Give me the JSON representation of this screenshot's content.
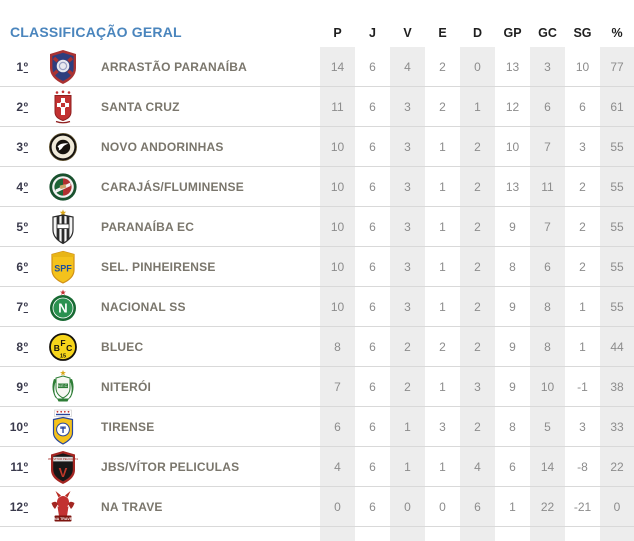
{
  "chart_data": {
    "type": "table",
    "title": "CLASSIFICAÇÃO GERAL",
    "columns": [
      "P",
      "J",
      "V",
      "E",
      "D",
      "GP",
      "GC",
      "SG",
      "%"
    ],
    "rows": [
      {
        "pos": "1º",
        "team": "ARRASTÃO PARANAÍBA",
        "crest": "arrastao-paranaiba-crest",
        "values": [
          14,
          6,
          4,
          2,
          0,
          13,
          3,
          10,
          77
        ]
      },
      {
        "pos": "2º",
        "team": "SANTA CRUZ",
        "crest": "santa-cruz-crest",
        "values": [
          11,
          6,
          3,
          2,
          1,
          12,
          6,
          6,
          61
        ]
      },
      {
        "pos": "3º",
        "team": "NOVO ANDORINHAS",
        "crest": "novo-andorinhas-crest",
        "values": [
          10,
          6,
          3,
          1,
          2,
          10,
          7,
          3,
          55
        ]
      },
      {
        "pos": "4º",
        "team": "CARAJÁS/FLUMINENSE",
        "crest": "carajas-fluminense-crest",
        "values": [
          10,
          6,
          3,
          1,
          2,
          13,
          11,
          2,
          55
        ]
      },
      {
        "pos": "5º",
        "team": "PARANAÍBA EC",
        "crest": "paranaiba-ec-crest",
        "values": [
          10,
          6,
          3,
          1,
          2,
          9,
          7,
          2,
          55
        ]
      },
      {
        "pos": "6º",
        "team": "SEL. PINHEIRENSE",
        "crest": "sel-pinheirense-crest",
        "values": [
          10,
          6,
          3,
          1,
          2,
          8,
          6,
          2,
          55
        ]
      },
      {
        "pos": "7º",
        "team": "NACIONAL SS",
        "crest": "nacional-ss-crest",
        "values": [
          10,
          6,
          3,
          1,
          2,
          9,
          8,
          1,
          55
        ]
      },
      {
        "pos": "8º",
        "team": "BLUEC",
        "crest": "bluec-crest",
        "values": [
          8,
          6,
          2,
          2,
          2,
          9,
          8,
          1,
          44
        ]
      },
      {
        "pos": "9º",
        "team": "NITERÓI",
        "crest": "niteroi-crest",
        "values": [
          7,
          6,
          2,
          1,
          3,
          9,
          10,
          -1,
          38
        ]
      },
      {
        "pos": "10º",
        "team": "TIRENSE",
        "crest": "tirense-crest",
        "values": [
          6,
          6,
          1,
          3,
          2,
          8,
          5,
          3,
          33
        ]
      },
      {
        "pos": "11º",
        "team": "JBS/VÍTOR PELICULAS",
        "crest": "jbs-vitor-peliculas-crest",
        "values": [
          4,
          6,
          1,
          1,
          4,
          6,
          14,
          -8,
          22
        ]
      },
      {
        "pos": "12º",
        "team": "NA TRAVE",
        "crest": "na-trave-crest",
        "values": [
          0,
          6,
          0,
          0,
          6,
          1,
          22,
          -21,
          0
        ]
      }
    ]
  },
  "colors": {
    "title_blue": "#4a85bd",
    "header_text": "#1f1f1f",
    "team_text": "#7a766c",
    "position_text": "#3a3a4c",
    "stat_text": "#8c8c8c",
    "stripe_gray": "#ededed",
    "row_line": "#d9d9d9",
    "background": "#ffffff"
  }
}
